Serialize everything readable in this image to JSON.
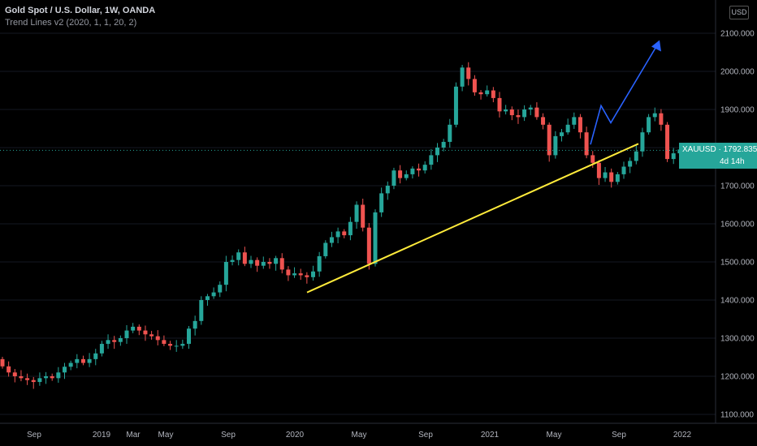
{
  "legend": {
    "title": "Gold Spot / U.S. Dollar, 1W, OANDA",
    "indicator": "Trend Lines v2 (2020, 1, 1, 20, 2)"
  },
  "currency_button": "USD",
  "price_label": {
    "symbol": "XAUUSD",
    "price": "1792.835",
    "countdown": "4d 14h"
  },
  "colors": {
    "up": "#26a69a",
    "down": "#ef5350",
    "trendline": "#ffeb3b",
    "projection": "#2962ff",
    "price_line": "#26a69a",
    "background": "#000000"
  },
  "chart_data": {
    "type": "candlestick",
    "ylim": [
      1100,
      2100
    ],
    "y_ticks": [
      "2100.000",
      "2000.000",
      "1900.000",
      "1800.000",
      "1700.000",
      "1600.000",
      "1500.000",
      "1400.000",
      "1300.000",
      "1200.000",
      "1100.000"
    ],
    "x_ticks": [
      "Sep",
      "2019",
      "Mar",
      "May",
      "Sep",
      "2020",
      "May",
      "Sep",
      "2021",
      "May",
      "Sep",
      "2022"
    ],
    "current_price": 1792.835,
    "closes": [
      1226,
      1210,
      1200,
      1195,
      1190,
      1185,
      1195,
      1200,
      1195,
      1210,
      1225,
      1235,
      1245,
      1235,
      1245,
      1260,
      1285,
      1295,
      1290,
      1300,
      1320,
      1330,
      1320,
      1310,
      1305,
      1295,
      1285,
      1280,
      1280,
      1285,
      1325,
      1345,
      1400,
      1410,
      1420,
      1440,
      1500,
      1505,
      1525,
      1495,
      1505,
      1490,
      1500,
      1495,
      1510,
      1480,
      1465,
      1470,
      1465,
      1460,
      1475,
      1515,
      1550,
      1565,
      1580,
      1570,
      1605,
      1650,
      1590,
      1495,
      1630,
      1680,
      1700,
      1740,
      1720,
      1730,
      1745,
      1740,
      1755,
      1780,
      1800,
      1815,
      1860,
      1960,
      2010,
      1980,
      1945,
      1940,
      1950,
      1930,
      1895,
      1900,
      1885,
      1880,
      1900,
      1905,
      1880,
      1860,
      1780,
      1830,
      1840,
      1860,
      1880,
      1840,
      1780,
      1760,
      1720,
      1735,
      1710,
      1730,
      1750,
      1765,
      1790,
      1840,
      1880,
      1890,
      1860,
      1770,
      1785,
      1795
    ],
    "trendline": {
      "from": [
        "Jan 2020",
        1420
      ],
      "to": [
        "Aug 2021",
        1810
      ]
    },
    "projection": [
      [
        "Jun 2021",
        1808
      ],
      [
        "Jul 2021",
        1910
      ],
      [
        "Jul 2021",
        1865
      ],
      [
        "Sep 2021",
        2065
      ]
    ]
  }
}
